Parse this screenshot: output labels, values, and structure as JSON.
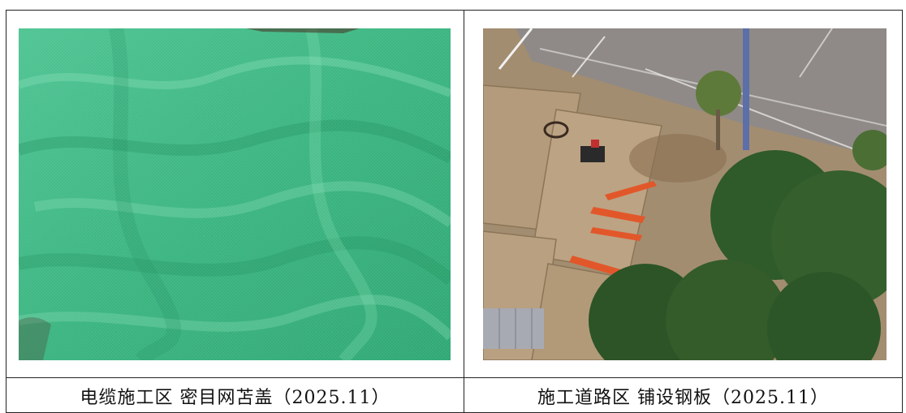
{
  "photos": [
    {
      "id": "left",
      "caption": "电缆施工区 密目网苫盖（2025.11）",
      "subject": "green dust-proof mesh covering ground"
    },
    {
      "id": "right",
      "caption": "施工道路区 铺设钢板（2025.11）",
      "subject": "aerial view of road area with steel plates, orange barriers, trees"
    }
  ],
  "colors": {
    "mesh_green": "#3fbf84",
    "border": "#222222",
    "caption_text": "#111111"
  }
}
